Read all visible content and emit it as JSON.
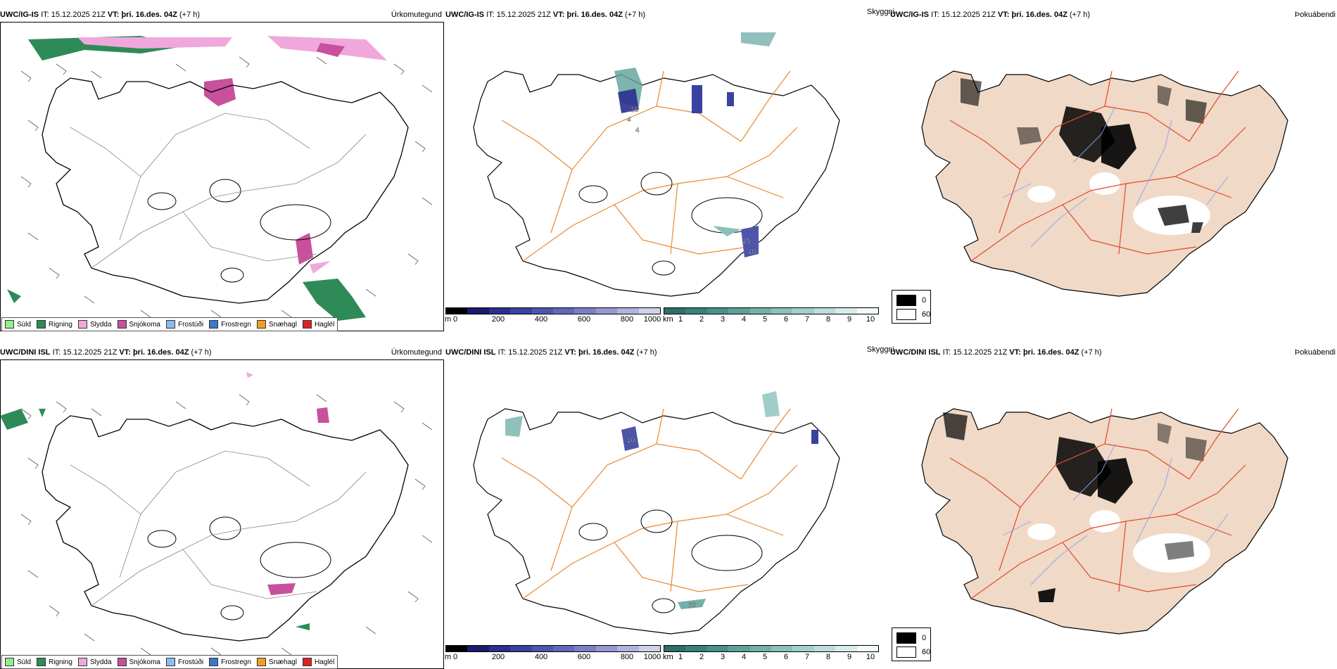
{
  "rows": [
    {
      "id": "top",
      "precip": {
        "model": "UWC/IG-IS",
        "it_label": "IT:",
        "it_value": "15.12.2025 21Z",
        "vt_label": "VT:",
        "vt_value": "þri. 16.des. 04Z",
        "lead": "(+7 h)",
        "name": "Úrkomutegund"
      },
      "cloud": {
        "model": "UWC/IG-IS",
        "it_label": "IT:",
        "it_value": "15.12.2025 21Z",
        "vt_label": "VT:",
        "vt_value": "þri. 16.des. 04Z",
        "lead": "(+7 h)",
        "name": "Skyggni"
      },
      "fog": {
        "model": "UWC/IG-IS",
        "it_label": "IT:",
        "it_value": "15.12.2025 21Z",
        "vt_label": "VT:",
        "vt_value": "þri. 16.des. 04Z",
        "lead": "(+7 h)",
        "name": "Þokuábendi"
      },
      "map_labels": [
        "16",
        "4",
        "4",
        "15",
        "10"
      ]
    },
    {
      "id": "bottom",
      "precip": {
        "model": "UWC/DINI ISL",
        "it_label": "IT:",
        "it_value": "15.12.2025 21Z",
        "vt_label": "VT:",
        "vt_value": "þri. 16.des. 04Z",
        "lead": "(+7 h)",
        "name": "Úrkomutegund"
      },
      "cloud": {
        "model": "UWC/DINI ISL",
        "it_label": "IT:",
        "it_value": "15.12.2025 21Z",
        "vt_label": "VT:",
        "vt_value": "þri. 16.des. 04Z",
        "lead": "(+7 h)",
        "name": "Skyggni"
      },
      "fog": {
        "model": "UWC/DINI ISL",
        "it_label": "IT:",
        "it_value": "15.12.2025 21Z",
        "vt_label": "VT:",
        "vt_value": "þri. 16.des. 04Z",
        "lead": "(+7 h)",
        "name": "Þokuábendi"
      },
      "map_labels": [
        "10",
        "10"
      ]
    }
  ],
  "precip_legend": [
    {
      "label": "Súld",
      "color": "#90ee90"
    },
    {
      "label": "Rigning",
      "color": "#2e8b57"
    },
    {
      "label": "Slydda",
      "color": "#f0a8dc"
    },
    {
      "label": "Snjókoma",
      "color": "#c8509c"
    },
    {
      "label": "Frostúði",
      "color": "#8cbcf0"
    },
    {
      "label": "Frostregn",
      "color": "#3a78c8"
    },
    {
      "label": "Snæhagl",
      "color": "#f0a020"
    },
    {
      "label": "Haglél",
      "color": "#e02020"
    }
  ],
  "cloud_base_scale": {
    "unit": "m",
    "ticks": [
      "0",
      "200",
      "400",
      "600",
      "800",
      "1000"
    ],
    "colors": [
      "#000000",
      "#1a1a6e",
      "#2b2f8f",
      "#3a42a0",
      "#4d55ad",
      "#6068b8",
      "#7a80c4",
      "#9498d0",
      "#b0b3dc",
      "#d0d2ea"
    ]
  },
  "visibility_scale": {
    "unit": "km",
    "ticks": [
      "1",
      "2",
      "3",
      "4",
      "5",
      "6",
      "7",
      "8",
      "9",
      "10"
    ],
    "colors": [
      "#2e6e6a",
      "#3a807a",
      "#4a908a",
      "#5ea09a",
      "#74b0aa",
      "#8ac0ba",
      "#a2d0ca",
      "#bcdeda",
      "#d6ecea",
      "#f2fafa"
    ]
  },
  "fog_index_legend": [
    {
      "label": "0",
      "color": "#000000"
    },
    {
      "label": "60",
      "color": "#ffffff"
    }
  ],
  "colors": {
    "road_orange": "#e8892e",
    "road_red": "#e04a30",
    "land_tan": "#f0d9c6",
    "river_blue": "#8aa0f0",
    "coast": "#000000"
  }
}
